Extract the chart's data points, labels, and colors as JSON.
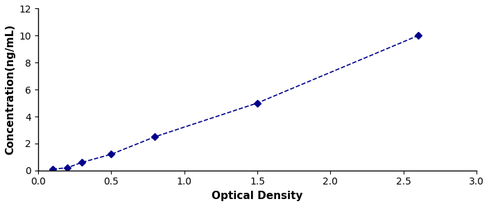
{
  "x": [
    0.1,
    0.2,
    0.3,
    0.5,
    0.8,
    1.5,
    2.6
  ],
  "y": [
    0.1,
    0.2,
    0.6,
    1.2,
    2.5,
    5.0,
    10.0
  ],
  "line_color": "#00008B",
  "marker": "D",
  "marker_color": "#00008B",
  "marker_size": 5,
  "linewidth": 1.2,
  "linestyle": "--",
  "xlabel": "Optical Density",
  "ylabel": "Concentration(ng/mL)",
  "xlim": [
    0,
    3
  ],
  "ylim": [
    0,
    12
  ],
  "xticks": [
    0,
    0.5,
    1,
    1.5,
    2,
    2.5,
    3
  ],
  "yticks": [
    0,
    2,
    4,
    6,
    8,
    10,
    12
  ],
  "xlabel_fontsize": 11,
  "ylabel_fontsize": 11,
  "tick_fontsize": 10,
  "background_color": "#ffffff",
  "border_color": "#000000"
}
